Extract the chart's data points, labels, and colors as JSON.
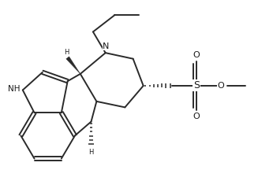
{
  "background_color": "#ffffff",
  "bond_color": "#2a2a2a",
  "label_color": "#1a1a1a",
  "font_size": 7.5,
  "figsize": [
    3.27,
    2.44
  ],
  "dpi": 100,
  "xlim": [
    0,
    9.5
  ],
  "ylim": [
    0,
    7.0
  ],
  "lw": 1.4
}
